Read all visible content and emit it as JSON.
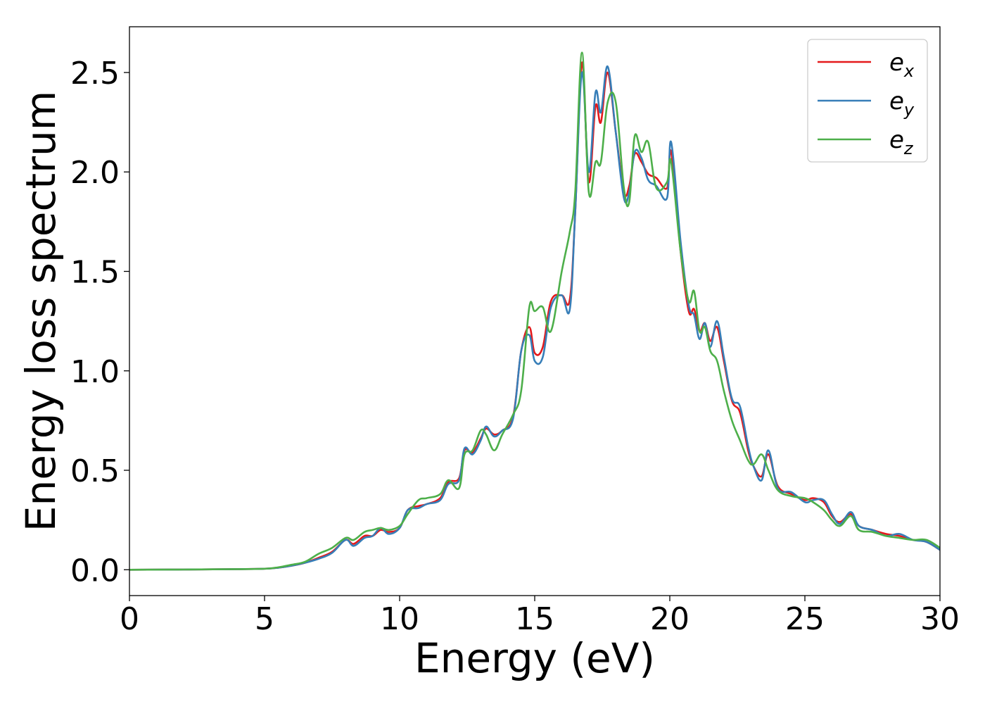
{
  "chart_data": {
    "type": "line",
    "xlabel": "Energy (eV)",
    "ylabel": "Energy loss spectrum",
    "xlim": [
      0,
      30
    ],
    "ylim": [
      -0.13,
      2.73
    ],
    "xticks": [
      0,
      5,
      10,
      15,
      20,
      25,
      30
    ],
    "xtick_labels": [
      "0",
      "5",
      "10",
      "15",
      "20",
      "25",
      "30"
    ],
    "yticks": [
      0.0,
      0.5,
      1.0,
      1.5,
      2.0,
      2.5
    ],
    "ytick_labels": [
      "0.0",
      "0.5",
      "1.0",
      "1.5",
      "2.0",
      "2.5"
    ],
    "grid": false,
    "legend_position": "top-right",
    "series": [
      {
        "name": "e",
        "subscript": "x",
        "color": "#e41a1c",
        "points": [
          [
            0,
            0
          ],
          [
            2,
            0.001
          ],
          [
            4,
            0.003
          ],
          [
            5,
            0.005
          ],
          [
            5.5,
            0.01
          ],
          [
            6,
            0.02
          ],
          [
            6.5,
            0.035
          ],
          [
            7,
            0.06
          ],
          [
            7.5,
            0.09
          ],
          [
            8,
            0.15
          ],
          [
            8.3,
            0.13
          ],
          [
            8.7,
            0.17
          ],
          [
            9,
            0.17
          ],
          [
            9.3,
            0.2
          ],
          [
            9.6,
            0.19
          ],
          [
            10,
            0.21
          ],
          [
            10.3,
            0.3
          ],
          [
            10.7,
            0.32
          ],
          [
            11,
            0.33
          ],
          [
            11.5,
            0.36
          ],
          [
            11.8,
            0.44
          ],
          [
            12.2,
            0.46
          ],
          [
            12.4,
            0.6
          ],
          [
            12.7,
            0.59
          ],
          [
            13,
            0.66
          ],
          [
            13.2,
            0.71
          ],
          [
            13.5,
            0.68
          ],
          [
            13.8,
            0.7
          ],
          [
            14.2,
            0.77
          ],
          [
            14.5,
            1.1
          ],
          [
            14.8,
            1.22
          ],
          [
            15,
            1.09
          ],
          [
            15.3,
            1.12
          ],
          [
            15.6,
            1.35
          ],
          [
            16,
            1.38
          ],
          [
            16.3,
            1.36
          ],
          [
            16.5,
            1.8
          ],
          [
            16.75,
            2.55
          ],
          [
            17,
            1.95
          ],
          [
            17.25,
            2.33
          ],
          [
            17.45,
            2.25
          ],
          [
            17.7,
            2.5
          ],
          [
            18,
            2.2
          ],
          [
            18.3,
            1.9
          ],
          [
            18.5,
            1.93
          ],
          [
            18.7,
            2.09
          ],
          [
            18.95,
            2.05
          ],
          [
            19.2,
            1.99
          ],
          [
            19.5,
            1.97
          ],
          [
            19.9,
            1.92
          ],
          [
            20.05,
            2.1
          ],
          [
            20.4,
            1.6
          ],
          [
            20.7,
            1.3
          ],
          [
            20.9,
            1.31
          ],
          [
            21.1,
            1.2
          ],
          [
            21.3,
            1.24
          ],
          [
            21.5,
            1.15
          ],
          [
            21.75,
            1.22
          ],
          [
            22,
            1.05
          ],
          [
            22.3,
            0.85
          ],
          [
            22.6,
            0.79
          ],
          [
            22.9,
            0.6
          ],
          [
            23.1,
            0.52
          ],
          [
            23.4,
            0.47
          ],
          [
            23.65,
            0.58
          ],
          [
            24,
            0.42
          ],
          [
            24.5,
            0.38
          ],
          [
            25,
            0.35
          ],
          [
            25.3,
            0.36
          ],
          [
            25.7,
            0.34
          ],
          [
            26,
            0.27
          ],
          [
            26.3,
            0.24
          ],
          [
            26.7,
            0.28
          ],
          [
            27,
            0.22
          ],
          [
            27.5,
            0.2
          ],
          [
            28,
            0.18
          ],
          [
            28.5,
            0.17
          ],
          [
            29,
            0.15
          ],
          [
            29.5,
            0.14
          ],
          [
            30,
            0.1
          ]
        ]
      },
      {
        "name": "e",
        "subscript": "y",
        "color": "#377eb8",
        "points": [
          [
            0,
            0
          ],
          [
            2,
            0.001
          ],
          [
            4,
            0.003
          ],
          [
            5,
            0.005
          ],
          [
            5.5,
            0.01
          ],
          [
            6,
            0.02
          ],
          [
            6.5,
            0.035
          ],
          [
            7,
            0.055
          ],
          [
            7.5,
            0.085
          ],
          [
            8,
            0.15
          ],
          [
            8.3,
            0.12
          ],
          [
            8.7,
            0.16
          ],
          [
            9,
            0.17
          ],
          [
            9.3,
            0.21
          ],
          [
            9.6,
            0.18
          ],
          [
            10,
            0.21
          ],
          [
            10.3,
            0.3
          ],
          [
            10.7,
            0.31
          ],
          [
            11,
            0.33
          ],
          [
            11.5,
            0.35
          ],
          [
            11.8,
            0.43
          ],
          [
            12.2,
            0.45
          ],
          [
            12.4,
            0.61
          ],
          [
            12.7,
            0.58
          ],
          [
            13,
            0.65
          ],
          [
            13.2,
            0.72
          ],
          [
            13.5,
            0.67
          ],
          [
            13.8,
            0.7
          ],
          [
            14.2,
            0.76
          ],
          [
            14.5,
            1.1
          ],
          [
            14.8,
            1.18
          ],
          [
            15,
            1.05
          ],
          [
            15.3,
            1.07
          ],
          [
            15.6,
            1.32
          ],
          [
            16,
            1.38
          ],
          [
            16.3,
            1.31
          ],
          [
            16.5,
            1.8
          ],
          [
            16.75,
            2.5
          ],
          [
            17,
            2.0
          ],
          [
            17.25,
            2.4
          ],
          [
            17.45,
            2.3
          ],
          [
            17.7,
            2.53
          ],
          [
            18,
            2.2
          ],
          [
            18.3,
            1.87
          ],
          [
            18.5,
            1.9
          ],
          [
            18.7,
            2.1
          ],
          [
            18.95,
            2.07
          ],
          [
            19.2,
            1.96
          ],
          [
            19.5,
            1.93
          ],
          [
            19.9,
            1.87
          ],
          [
            20.05,
            2.15
          ],
          [
            20.4,
            1.65
          ],
          [
            20.7,
            1.33
          ],
          [
            20.9,
            1.28
          ],
          [
            21.1,
            1.16
          ],
          [
            21.3,
            1.24
          ],
          [
            21.5,
            1.12
          ],
          [
            21.75,
            1.25
          ],
          [
            22,
            1.07
          ],
          [
            22.3,
            0.86
          ],
          [
            22.6,
            0.82
          ],
          [
            22.9,
            0.62
          ],
          [
            23.1,
            0.52
          ],
          [
            23.4,
            0.45
          ],
          [
            23.65,
            0.6
          ],
          [
            24,
            0.41
          ],
          [
            24.5,
            0.39
          ],
          [
            25,
            0.34
          ],
          [
            25.3,
            0.35
          ],
          [
            25.7,
            0.35
          ],
          [
            26,
            0.28
          ],
          [
            26.3,
            0.23
          ],
          [
            26.7,
            0.29
          ],
          [
            27,
            0.22
          ],
          [
            27.5,
            0.2
          ],
          [
            28,
            0.17
          ],
          [
            28.5,
            0.18
          ],
          [
            29,
            0.15
          ],
          [
            29.5,
            0.14
          ],
          [
            30,
            0.1
          ]
        ]
      },
      {
        "name": "e",
        "subscript": "z",
        "color": "#4daf4a",
        "points": [
          [
            0,
            0
          ],
          [
            2,
            0.001
          ],
          [
            4,
            0.003
          ],
          [
            5,
            0.005
          ],
          [
            5.5,
            0.012
          ],
          [
            6,
            0.025
          ],
          [
            6.5,
            0.04
          ],
          [
            7,
            0.08
          ],
          [
            7.5,
            0.11
          ],
          [
            8,
            0.16
          ],
          [
            8.3,
            0.15
          ],
          [
            8.7,
            0.19
          ],
          [
            9,
            0.2
          ],
          [
            9.3,
            0.21
          ],
          [
            9.6,
            0.2
          ],
          [
            10,
            0.22
          ],
          [
            10.3,
            0.28
          ],
          [
            10.7,
            0.35
          ],
          [
            11,
            0.36
          ],
          [
            11.5,
            0.38
          ],
          [
            11.8,
            0.45
          ],
          [
            12.2,
            0.41
          ],
          [
            12.4,
            0.58
          ],
          [
            12.7,
            0.6
          ],
          [
            13,
            0.7
          ],
          [
            13.2,
            0.68
          ],
          [
            13.5,
            0.6
          ],
          [
            13.8,
            0.68
          ],
          [
            14.2,
            0.78
          ],
          [
            14.5,
            0.9
          ],
          [
            14.8,
            1.32
          ],
          [
            15,
            1.3
          ],
          [
            15.3,
            1.32
          ],
          [
            15.6,
            1.2
          ],
          [
            16,
            1.5
          ],
          [
            16.3,
            1.7
          ],
          [
            16.5,
            1.9
          ],
          [
            16.75,
            2.6
          ],
          [
            17,
            1.9
          ],
          [
            17.25,
            2.05
          ],
          [
            17.45,
            2.05
          ],
          [
            17.7,
            2.35
          ],
          [
            18,
            2.35
          ],
          [
            18.3,
            1.92
          ],
          [
            18.5,
            1.85
          ],
          [
            18.7,
            2.18
          ],
          [
            18.95,
            2.1
          ],
          [
            19.2,
            2.15
          ],
          [
            19.5,
            1.92
          ],
          [
            19.9,
            1.95
          ],
          [
            20.05,
            2.05
          ],
          [
            20.4,
            1.6
          ],
          [
            20.7,
            1.35
          ],
          [
            20.9,
            1.4
          ],
          [
            21.1,
            1.2
          ],
          [
            21.3,
            1.22
          ],
          [
            21.5,
            1.1
          ],
          [
            21.75,
            1.05
          ],
          [
            22,
            0.9
          ],
          [
            22.3,
            0.75
          ],
          [
            22.6,
            0.65
          ],
          [
            22.9,
            0.55
          ],
          [
            23.1,
            0.53
          ],
          [
            23.4,
            0.58
          ],
          [
            23.65,
            0.5
          ],
          [
            24,
            0.4
          ],
          [
            24.5,
            0.37
          ],
          [
            25,
            0.36
          ],
          [
            25.3,
            0.34
          ],
          [
            25.7,
            0.3
          ],
          [
            26,
            0.25
          ],
          [
            26.3,
            0.22
          ],
          [
            26.7,
            0.27
          ],
          [
            27,
            0.2
          ],
          [
            27.5,
            0.19
          ],
          [
            28,
            0.17
          ],
          [
            28.5,
            0.16
          ],
          [
            29,
            0.15
          ],
          [
            29.5,
            0.15
          ],
          [
            30,
            0.11
          ]
        ]
      }
    ]
  }
}
